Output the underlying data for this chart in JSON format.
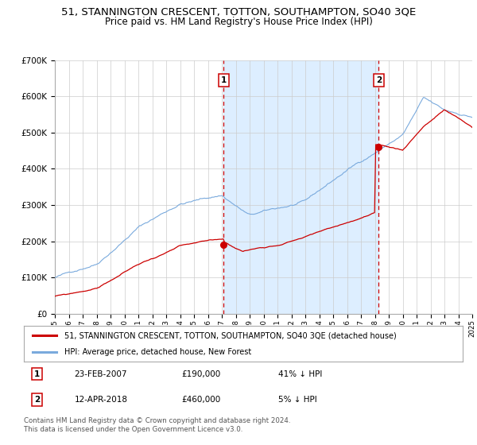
{
  "title": "51, STANNINGTON CRESCENT, TOTTON, SOUTHAMPTON, SO40 3QE",
  "subtitle": "Price paid vs. HM Land Registry's House Price Index (HPI)",
  "legend_line1": "51, STANNINGTON CRESCENT, TOTTON, SOUTHAMPTON, SO40 3QE (detached house)",
  "legend_line2": "HPI: Average price, detached house, New Forest",
  "annotation1_date": "23-FEB-2007",
  "annotation1_price": "£190,000",
  "annotation1_pct": "41% ↓ HPI",
  "annotation2_date": "12-APR-2018",
  "annotation2_price": "£460,000",
  "annotation2_pct": "5% ↓ HPI",
  "footnote": "Contains HM Land Registry data © Crown copyright and database right 2024.\nThis data is licensed under the Open Government Licence v3.0.",
  "ylim": [
    0,
    700000
  ],
  "yticks": [
    0,
    100000,
    200000,
    300000,
    400000,
    500000,
    600000,
    700000
  ],
  "ytick_labels": [
    "£0",
    "£100K",
    "£200K",
    "£300K",
    "£400K",
    "£500K",
    "£600K",
    "£700K"
  ],
  "x_start_year": 1995,
  "x_end_year": 2025,
  "sale1_year": 2007.14,
  "sale1_price": 190000,
  "sale2_year": 2018.28,
  "sale2_price": 460000,
  "bg_color": "#ffffff",
  "plot_bg_color": "#ffffff",
  "shade_color": "#ddeeff",
  "grid_color": "#cccccc",
  "hpi_color": "#7aaadd",
  "price_color": "#cc0000",
  "title_fontsize": 9.5,
  "subtitle_fontsize": 8.5
}
